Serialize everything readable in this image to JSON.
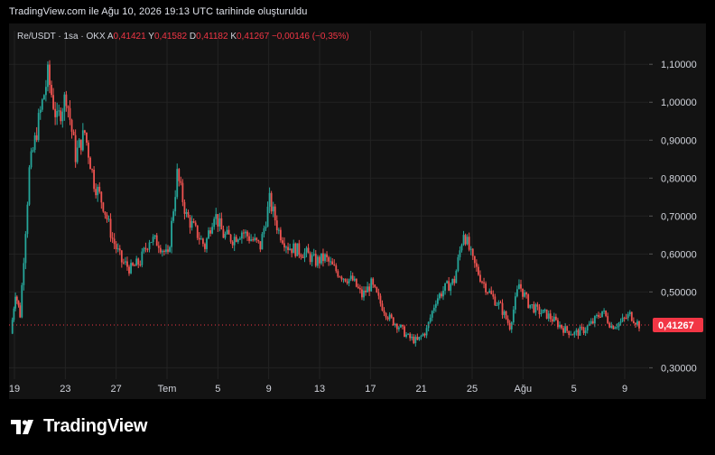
{
  "header": {
    "caption": "TradingView.com ile Ağu 10, 2026 19:13 UTC tarihinde oluşturuldu"
  },
  "legend": {
    "symbol": "Re/USDT · 1sa · OKX",
    "o_label": "A",
    "o_value": "0,41421",
    "h_label": "Y",
    "h_value": "0,41582",
    "l_label": "D",
    "l_value": "0,41182",
    "c_label": "K",
    "c_value": "0,41267",
    "change": "−0,00146 (−0,35%)"
  },
  "colors": {
    "up": "#26a69a",
    "down": "#ef5350",
    "price_badge": "#f23645",
    "grid": "#232323"
  },
  "chart_data": {
    "type": "candlestick",
    "title": "Re/USDT · 1sa · OKX",
    "timeframe": "1h",
    "x_tick_labels": [
      "19",
      "23",
      "27",
      "Tem",
      "5",
      "9",
      "13",
      "17",
      "21",
      "25",
      "Ağu",
      "5",
      "9"
    ],
    "y_tick_labels": [
      "1,10000",
      "1,00000",
      "0,90000",
      "0,80000",
      "0,70000",
      "0,60000",
      "0,50000",
      "0,30000"
    ],
    "y_ticks": [
      1.1,
      1.0,
      0.9,
      0.8,
      0.7,
      0.6,
      0.5,
      0.3
    ],
    "ylim": [
      0.27,
      1.16
    ],
    "last_price": 0.41267,
    "last_price_label": "0,41267",
    "grid": true,
    "price_path": [
      {
        "x": 0,
        "y": 0.39
      },
      {
        "x": 0.5,
        "y": 0.5
      },
      {
        "x": 1,
        "y": 0.44
      },
      {
        "x": 2,
        "y": 0.82
      },
      {
        "x": 3,
        "y": 0.95
      },
      {
        "x": 4,
        "y": 1.07
      },
      {
        "x": 5,
        "y": 0.95
      },
      {
        "x": 6,
        "y": 1.02
      },
      {
        "x": 7,
        "y": 0.86
      },
      {
        "x": 8,
        "y": 0.92
      },
      {
        "x": 9,
        "y": 0.79
      },
      {
        "x": 10,
        "y": 0.73
      },
      {
        "x": 11,
        "y": 0.64
      },
      {
        "x": 12,
        "y": 0.58
      },
      {
        "x": 13,
        "y": 0.56
      },
      {
        "x": 14,
        "y": 0.58
      },
      {
        "x": 15,
        "y": 0.64
      },
      {
        "x": 16,
        "y": 0.63
      },
      {
        "x": 17,
        "y": 0.59
      },
      {
        "x": 18,
        "y": 0.81
      },
      {
        "x": 19,
        "y": 0.7
      },
      {
        "x": 20,
        "y": 0.66
      },
      {
        "x": 21,
        "y": 0.62
      },
      {
        "x": 22,
        "y": 0.71
      },
      {
        "x": 23,
        "y": 0.65
      },
      {
        "x": 24,
        "y": 0.64
      },
      {
        "x": 25,
        "y": 0.66
      },
      {
        "x": 26,
        "y": 0.64
      },
      {
        "x": 27,
        "y": 0.62
      },
      {
        "x": 28,
        "y": 0.74
      },
      {
        "x": 29,
        "y": 0.66
      },
      {
        "x": 30,
        "y": 0.62
      },
      {
        "x": 31,
        "y": 0.61
      },
      {
        "x": 32,
        "y": 0.6
      },
      {
        "x": 33,
        "y": 0.58
      },
      {
        "x": 34,
        "y": 0.59
      },
      {
        "x": 35,
        "y": 0.56
      },
      {
        "x": 36,
        "y": 0.54
      },
      {
        "x": 37,
        "y": 0.53
      },
      {
        "x": 38,
        "y": 0.49
      },
      {
        "x": 39,
        "y": 0.52
      },
      {
        "x": 40,
        "y": 0.47
      },
      {
        "x": 41,
        "y": 0.43
      },
      {
        "x": 42,
        "y": 0.41
      },
      {
        "x": 43,
        "y": 0.38
      },
      {
        "x": 44,
        "y": 0.37
      },
      {
        "x": 45,
        "y": 0.4
      },
      {
        "x": 46,
        "y": 0.48
      },
      {
        "x": 47,
        "y": 0.51
      },
      {
        "x": 48,
        "y": 0.53
      },
      {
        "x": 49,
        "y": 0.66
      },
      {
        "x": 50,
        "y": 0.58
      },
      {
        "x": 51,
        "y": 0.53
      },
      {
        "x": 52,
        "y": 0.49
      },
      {
        "x": 53,
        "y": 0.46
      },
      {
        "x": 54,
        "y": 0.41
      },
      {
        "x": 55,
        "y": 0.52
      },
      {
        "x": 56,
        "y": 0.47
      },
      {
        "x": 57,
        "y": 0.45
      },
      {
        "x": 58,
        "y": 0.44
      },
      {
        "x": 59,
        "y": 0.42
      },
      {
        "x": 60,
        "y": 0.4
      },
      {
        "x": 61,
        "y": 0.39
      },
      {
        "x": 62,
        "y": 0.4
      },
      {
        "x": 63,
        "y": 0.42
      },
      {
        "x": 64,
        "y": 0.45
      },
      {
        "x": 65,
        "y": 0.41
      },
      {
        "x": 66,
        "y": 0.42
      },
      {
        "x": 67,
        "y": 0.44
      },
      {
        "x": 68,
        "y": 0.413
      }
    ]
  },
  "brand": {
    "logo_text": "TV",
    "name": "TradingView"
  }
}
